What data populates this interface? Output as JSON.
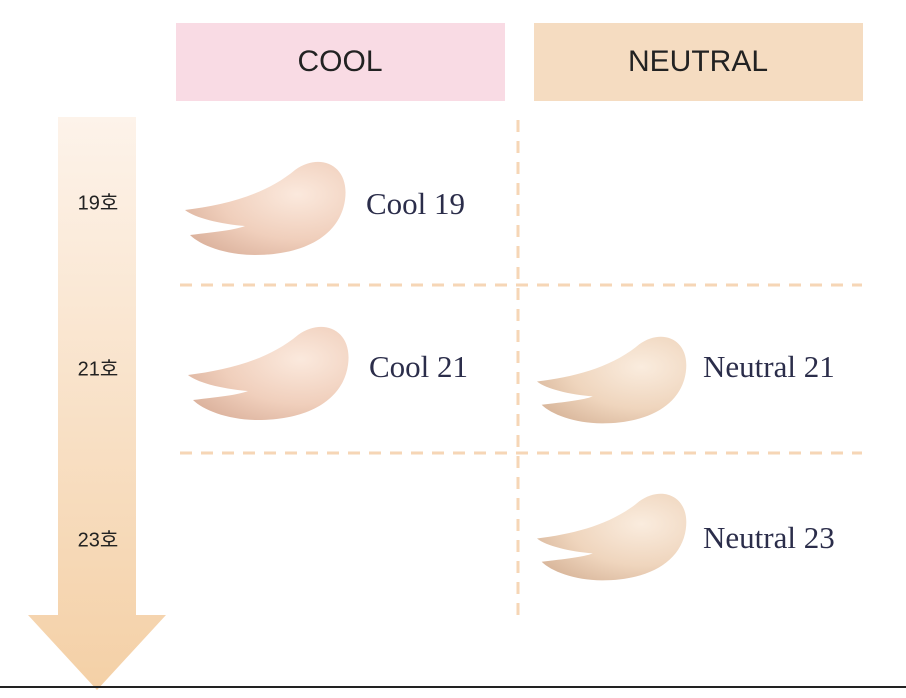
{
  "columns": {
    "cool": "COOL",
    "neutral": "NEUTRAL"
  },
  "rows": [
    {
      "label": "19호",
      "cool": "Cool 19"
    },
    {
      "label": "21호",
      "cool": "Cool 21",
      "neutral": "Neutral 21"
    },
    {
      "label": "23호",
      "neutral": "Neutral 23"
    }
  ]
}
